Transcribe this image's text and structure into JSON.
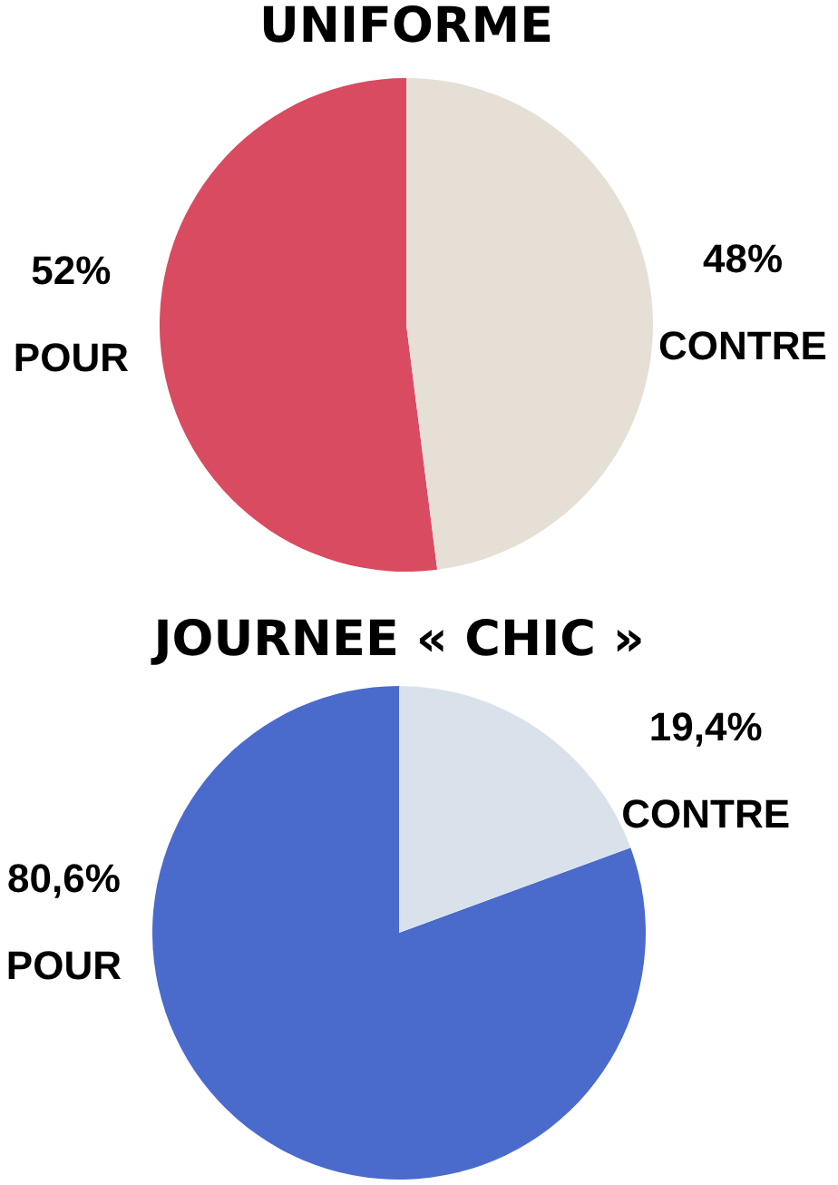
{
  "chart_data": [
    {
      "type": "pie",
      "title": "UNIFORME",
      "categories": [
        "POUR",
        "CONTRE"
      ],
      "values": [
        52,
        48
      ],
      "colors": [
        "#d94b60",
        "#e6dfd5"
      ],
      "value_labels": [
        "52%",
        "48%"
      ]
    },
    {
      "type": "pie",
      "title": "JOURNEE « CHIC »",
      "categories": [
        "POUR",
        "CONTRE"
      ],
      "values": [
        80.6,
        19.4
      ],
      "colors": [
        "#4a6bcc",
        "#d9e2eb"
      ],
      "value_labels": [
        "80,6%",
        "19,4%"
      ]
    }
  ]
}
